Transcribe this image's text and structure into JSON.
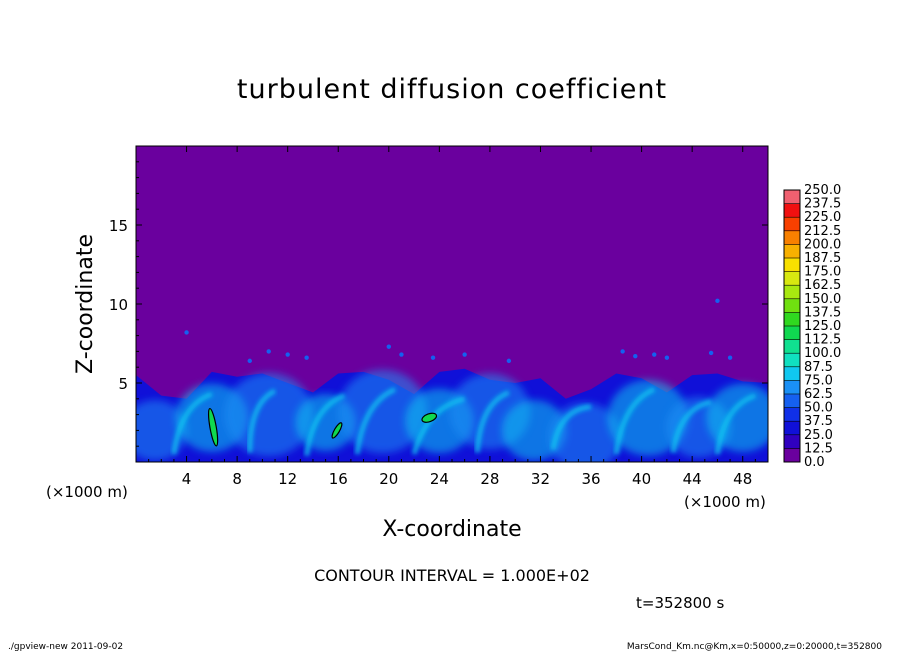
{
  "chart_data": {
    "type": "heatmap",
    "title": "turbulent diffusion coefficient",
    "xlabel": "X-coordinate",
    "ylabel": "Z-coordinate",
    "x_unit": "(×1000 m)",
    "y_unit": "(×1000 m)",
    "xlim": [
      0,
      50
    ],
    "ylim": [
      0,
      20
    ],
    "x_ticks": [
      4,
      8,
      12,
      16,
      20,
      24,
      28,
      32,
      36,
      40,
      44,
      48
    ],
    "y_ticks": [
      5,
      10,
      15
    ],
    "colorbar": {
      "levels": [
        0.0,
        12.5,
        25.0,
        37.5,
        50.0,
        62.5,
        75.0,
        87.5,
        100.0,
        112.5,
        125.0,
        137.5,
        150.0,
        162.5,
        175.0,
        187.5,
        200.0,
        212.5,
        225.0,
        237.5,
        250.0
      ],
      "labels": [
        "0.0",
        "12.5",
        "25.0",
        "37.5",
        "50.0",
        "62.5",
        "75.0",
        "87.5",
        "100.0",
        "112.5",
        "125.0",
        "137.5",
        "150.0",
        "162.5",
        "175.0",
        "187.5",
        "200.0",
        "212.5",
        "225.0",
        "237.5",
        "250.0"
      ],
      "colors": [
        "#6a009e",
        "#3000bf",
        "#1010d8",
        "#1030e8",
        "#1560f0",
        "#1a90f5",
        "#10c8f0",
        "#10e0c0",
        "#10e090",
        "#10d850",
        "#30d820",
        "#70e010",
        "#a8e810",
        "#d8e810",
        "#f8e000",
        "#f8b000",
        "#f88000",
        "#f84000",
        "#f01010",
        "#f06070"
      ]
    },
    "background_value": 0.0,
    "boundary_layer_top_km": [
      5.5,
      4.2,
      4.0,
      5.7,
      5.4,
      5.6,
      5.0,
      4.4,
      5.6,
      5.7,
      5.2,
      4.3,
      5.7,
      5.9,
      5.2,
      5.0,
      5.3,
      4.0,
      4.6,
      5.6,
      5.3,
      4.4,
      5.5,
      5.6,
      5.1,
      5.0
    ],
    "contour_interval": "CONTOUR INTERVAL = 1.000E+02",
    "time": "t=352800 s"
  },
  "footer": {
    "left": "./gpview-new   2011-09-02",
    "right": "MarsCond_Km.nc@Km,x=0:50000,z=0:20000,t=352800"
  }
}
